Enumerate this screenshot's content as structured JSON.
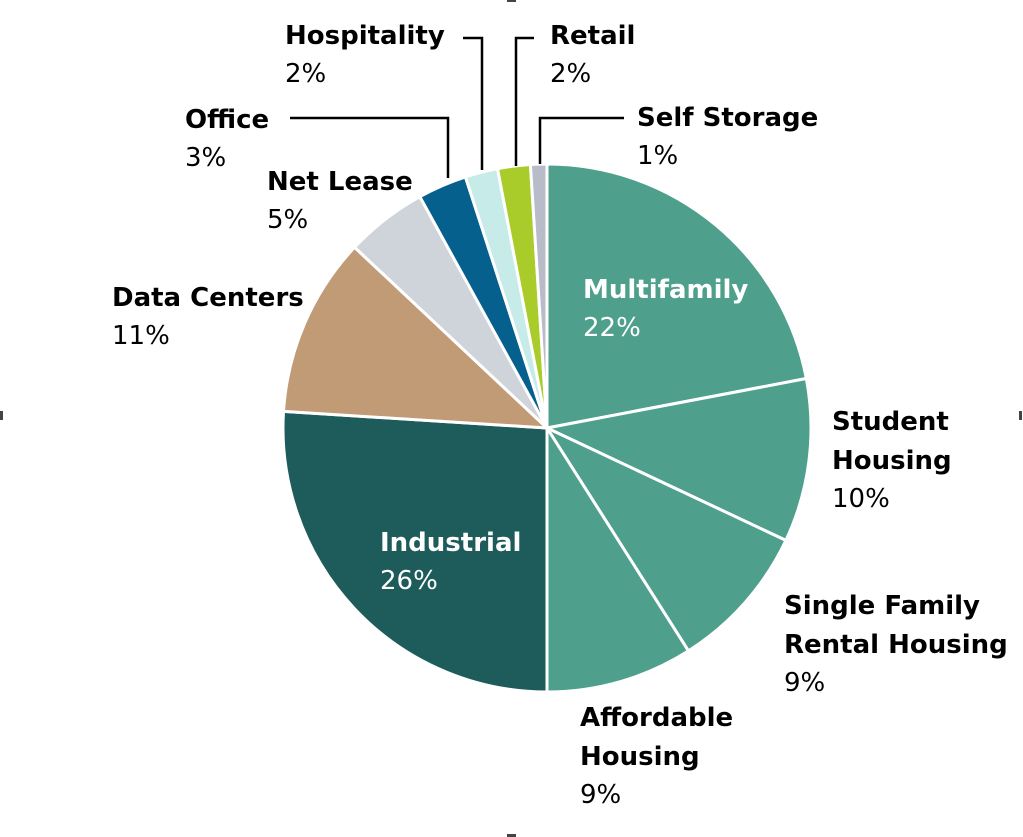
{
  "chart_data": {
    "type": "pie",
    "title": "",
    "slices": [
      {
        "label": "Multifamily",
        "value": 22,
        "display": "22%",
        "color": "#4e9f8c",
        "label_color": "#ffffff"
      },
      {
        "label": "Student Housing",
        "label_lines": [
          "Student",
          "Housing"
        ],
        "value": 10,
        "display": "10%",
        "color": "#4e9f8c",
        "label_color": "#000000"
      },
      {
        "label": "Single Family Rental Housing",
        "label_lines": [
          "Single Family",
          "Rental Housing"
        ],
        "value": 9,
        "display": "9%",
        "color": "#4e9f8c",
        "label_color": "#000000"
      },
      {
        "label": "Affordable Housing",
        "label_lines": [
          "Affordable",
          "Housing"
        ],
        "value": 9,
        "display": "9%",
        "color": "#4e9f8c",
        "label_color": "#000000"
      },
      {
        "label": "Industrial",
        "value": 26,
        "display": "26%",
        "color": "#1d5c5a",
        "label_color": "#ffffff"
      },
      {
        "label": "Data Centers",
        "value": 11,
        "display": "11%",
        "color": "#c19b76",
        "label_color": "#000000"
      },
      {
        "label": "Net Lease",
        "value": 5,
        "display": "5%",
        "color": "#cfd3da",
        "label_color": "#000000"
      },
      {
        "label": "Office",
        "value": 3,
        "display": "3%",
        "color": "#05608e",
        "label_color": "#000000"
      },
      {
        "label": "Hospitality",
        "value": 2,
        "display": "2%",
        "color": "#c6ebe8",
        "label_color": "#000000"
      },
      {
        "label": "Retail",
        "value": 2,
        "display": "2%",
        "color": "#a9cc2a",
        "label_color": "#000000"
      },
      {
        "label": "Self Storage",
        "value": 1,
        "display": "1%",
        "color": "#b8bcc8",
        "label_color": "#000000"
      }
    ],
    "legend": "none",
    "slice_border_color": "#ffffff"
  }
}
